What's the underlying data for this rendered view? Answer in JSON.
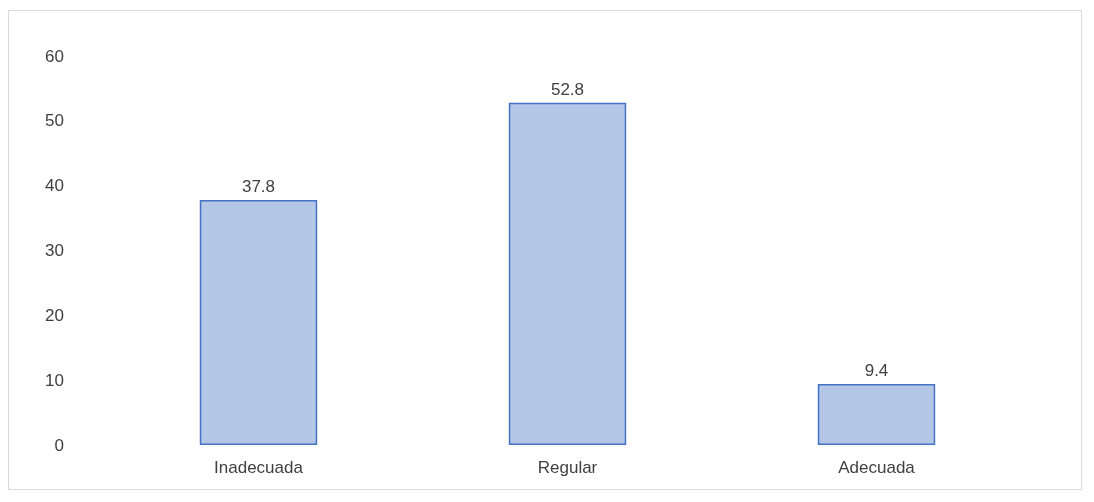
{
  "chart_data": {
    "type": "bar",
    "categories": [
      "Inadecuada",
      "Regular",
      "Adecuada"
    ],
    "values": [
      37.8,
      52.8,
      9.4
    ],
    "color": "#b4c7e7",
    "ylim": [
      0,
      60
    ],
    "yticks": [
      0,
      10,
      20,
      30,
      40,
      50,
      60
    ],
    "data_labels": true
  }
}
